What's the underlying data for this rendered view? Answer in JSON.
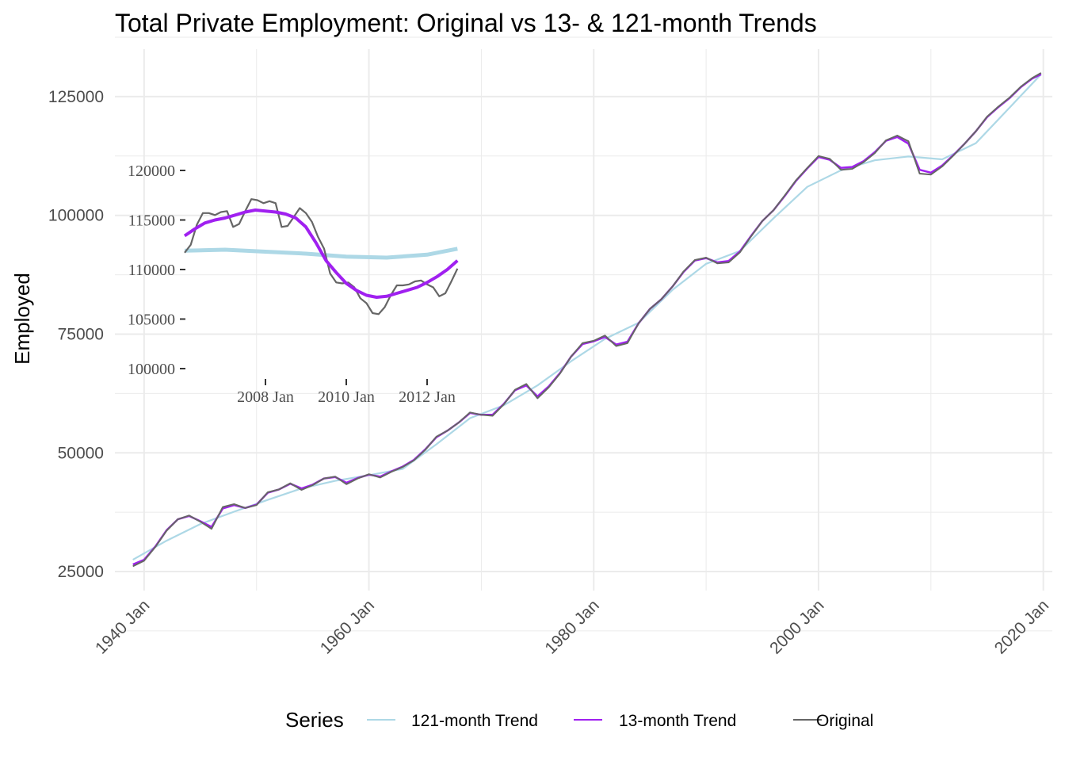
{
  "chart_data": [
    {
      "type": "line",
      "title": "Total Private Employment: Original vs 13- & 121-month Trends",
      "xlabel": "",
      "ylabel": "Employed",
      "x_ticks": [
        "1940 Jan",
        "1960 Jan",
        "1980 Jan",
        "2000 Jan",
        "2020 Jan"
      ],
      "y_ticks": [
        25000,
        50000,
        75000,
        100000,
        125000
      ],
      "xlim": [
        1937.4,
        2020.8
      ],
      "ylim": [
        21000,
        135000
      ],
      "grid": true,
      "legend": {
        "title": "Series",
        "position": "bottom",
        "entries": [
          "121-month Trend",
          "13-month Trend",
          "Original"
        ]
      },
      "colors": {
        "trend121": "#add8e6",
        "trend13": "#a020f0",
        "original": "#666666",
        "grid": "#ebebeb"
      },
      "series": [
        {
          "name": "Original",
          "x": [
            1939.0,
            1940.0,
            1941.0,
            1942.0,
            1943.0,
            1944.0,
            1945.0,
            1946.0,
            1947.0,
            1948.0,
            1949.0,
            1950.0,
            1951.0,
            1952.0,
            1953.0,
            1954.0,
            1955.0,
            1956.0,
            1957.0,
            1958.0,
            1959.0,
            1960.0,
            1961.0,
            1962.0,
            1963.0,
            1964.0,
            1965.0,
            1966.0,
            1967.0,
            1968.0,
            1969.0,
            1970.0,
            1971.0,
            1972.0,
            1973.0,
            1974.0,
            1975.0,
            1976.0,
            1977.0,
            1978.0,
            1979.0,
            1980.0,
            1981.0,
            1982.0,
            1983.0,
            1984.0,
            1985.0,
            1986.0,
            1987.0,
            1988.0,
            1989.0,
            1990.0,
            1991.0,
            1992.0,
            1993.0,
            1994.0,
            1995.0,
            1996.0,
            1997.0,
            1998.0,
            1999.0,
            2000.0,
            2001.0,
            2002.0,
            2003.0,
            2004.0,
            2005.0,
            2006.0,
            2007.0,
            2008.0,
            2009.0,
            2010.0,
            2011.0,
            2012.0,
            2013.0,
            2014.0,
            2015.0,
            2016.0,
            2017.0,
            2018.0,
            2019.0,
            2019.8
          ],
          "values": [
            26100,
            27300,
            30200,
            33600,
            36000,
            36800,
            35500,
            34000,
            38600,
            39200,
            38400,
            39000,
            41700,
            42300,
            43600,
            42200,
            43200,
            44600,
            45000,
            43400,
            44600,
            45500,
            44800,
            46000,
            47000,
            48400,
            50600,
            53400,
            54700,
            56400,
            58500,
            58000,
            57800,
            60200,
            63300,
            64500,
            61500,
            63800,
            66700,
            70300,
            73100,
            73600,
            74700,
            72500,
            73100,
            77300,
            80300,
            82300,
            85000,
            88200,
            90600,
            91100,
            89900,
            90100,
            92200,
            95600,
            98800,
            101100,
            104200,
            107400,
            110000,
            112500,
            111900,
            109600,
            109800,
            111200,
            113100,
            115800,
            116800,
            115600,
            108800,
            108600,
            110300,
            112600,
            115100,
            117700,
            120800,
            122900,
            124800,
            127100,
            128900,
            130000
          ]
        },
        {
          "name": "13-month Trend",
          "x": [
            1939.0,
            1940.0,
            1941.0,
            1942.0,
            1943.0,
            1944.0,
            1945.0,
            1946.0,
            1947.0,
            1948.0,
            1949.0,
            1950.0,
            1951.0,
            1952.0,
            1953.0,
            1954.0,
            1955.0,
            1956.0,
            1957.0,
            1958.0,
            1959.0,
            1960.0,
            1961.0,
            1962.0,
            1963.0,
            1964.0,
            1965.0,
            1966.0,
            1967.0,
            1968.0,
            1969.0,
            1970.0,
            1971.0,
            1972.0,
            1973.0,
            1974.0,
            1975.0,
            1976.0,
            1977.0,
            1978.0,
            1979.0,
            1980.0,
            1981.0,
            1982.0,
            1983.0,
            1984.0,
            1985.0,
            1986.0,
            1987.0,
            1988.0,
            1989.0,
            1990.0,
            1991.0,
            1992.0,
            1993.0,
            1994.0,
            1995.0,
            1996.0,
            1997.0,
            1998.0,
            1999.0,
            2000.0,
            2001.0,
            2002.0,
            2003.0,
            2004.0,
            2005.0,
            2006.0,
            2007.0,
            2008.0,
            2009.0,
            2010.0,
            2011.0,
            2012.0,
            2013.0,
            2014.0,
            2015.0,
            2016.0,
            2017.0,
            2018.0,
            2019.0,
            2019.8
          ],
          "values": [
            26500,
            27500,
            30300,
            33700,
            36000,
            36700,
            35600,
            34400,
            38300,
            39000,
            38400,
            39100,
            41600,
            42300,
            43500,
            42500,
            43300,
            44600,
            44900,
            43700,
            44700,
            45400,
            45000,
            46100,
            47100,
            48500,
            50700,
            53300,
            54700,
            56400,
            58400,
            58000,
            58000,
            60300,
            63200,
            64200,
            61900,
            64000,
            66800,
            70300,
            72900,
            73500,
            74400,
            72800,
            73400,
            77300,
            80300,
            82300,
            85000,
            88100,
            90500,
            91000,
            90100,
            90400,
            92400,
            95700,
            98800,
            101100,
            104100,
            107300,
            109900,
            112300,
            111700,
            110000,
            110200,
            111400,
            113300,
            115700,
            116500,
            115100,
            109600,
            109000,
            110500,
            112700,
            115100,
            117700,
            120700,
            122800,
            124700,
            127000,
            128800,
            129700
          ]
        },
        {
          "name": "121-month Trend",
          "x": [
            1939.0,
            1942.0,
            1945.0,
            1948.0,
            1951.0,
            1954.0,
            1957.0,
            1960.0,
            1963.0,
            1966.0,
            1969.0,
            1972.0,
            1975.0,
            1978.0,
            1981.0,
            1984.0,
            1987.0,
            1990.0,
            1993.0,
            1996.0,
            1999.0,
            2002.0,
            2005.0,
            2008.0,
            2011.0,
            2014.0,
            2017.0,
            2019.8
          ],
          "values": [
            27500,
            31500,
            35000,
            37600,
            40100,
            42500,
            44100,
            45300,
            46600,
            51800,
            57300,
            60000,
            64200,
            69300,
            74000,
            77400,
            84300,
            89800,
            92500,
            99400,
            106000,
            109500,
            111600,
            112400,
            111800,
            115200,
            122700,
            129700
          ]
        }
      ]
    },
    {
      "type": "line",
      "title": "",
      "x_ticks": [
        "2008 Jan",
        "2010 Jan",
        "2012 Jan"
      ],
      "y_ticks": [
        100000,
        105000,
        110000,
        115000,
        120000
      ],
      "xlim": [
        2006.0,
        2013.0
      ],
      "ylim": [
        98800,
        121600
      ],
      "grid": false,
      "series": [
        {
          "name": "Original",
          "x": [
            2006.0,
            2006.15,
            2006.3,
            2006.45,
            2006.6,
            2006.75,
            2006.9,
            2007.05,
            2007.2,
            2007.35,
            2007.5,
            2007.65,
            2007.8,
            2007.95,
            2008.1,
            2008.25,
            2008.4,
            2008.55,
            2008.7,
            2008.85,
            2009.0,
            2009.15,
            2009.3,
            2009.45,
            2009.6,
            2009.75,
            2009.9,
            2010.05,
            2010.2,
            2010.35,
            2010.5,
            2010.65,
            2010.8,
            2010.95,
            2011.1,
            2011.25,
            2011.4,
            2011.55,
            2011.7,
            2011.85,
            2012.0,
            2012.15,
            2012.3,
            2012.45,
            2012.6,
            2012.75
          ],
          "values": [
            111700,
            112500,
            114500,
            115700,
            115700,
            115500,
            115800,
            115900,
            114300,
            114600,
            115900,
            117100,
            117000,
            116700,
            116900,
            116700,
            114300,
            114400,
            115300,
            116200,
            115700,
            114800,
            113300,
            112100,
            109600,
            108700,
            108600,
            108700,
            108200,
            107100,
            106600,
            105600,
            105500,
            106200,
            107400,
            108400,
            108400,
            108500,
            108800,
            108900,
            108500,
            108200,
            107300,
            107600,
            108800,
            110100
          ]
        },
        {
          "name": "13-month Trend",
          "x": [
            2006.0,
            2006.25,
            2006.5,
            2006.75,
            2007.0,
            2007.25,
            2007.5,
            2007.75,
            2008.0,
            2008.25,
            2008.5,
            2008.75,
            2009.0,
            2009.25,
            2009.5,
            2009.75,
            2010.0,
            2010.25,
            2010.5,
            2010.75,
            2011.0,
            2011.25,
            2011.5,
            2011.75,
            2012.0,
            2012.25,
            2012.5,
            2012.75
          ],
          "values": [
            113400,
            114100,
            114700,
            115000,
            115200,
            115500,
            115800,
            116000,
            115900,
            115800,
            115600,
            115200,
            114300,
            112700,
            110900,
            109700,
            108600,
            107900,
            107400,
            107200,
            107300,
            107600,
            107900,
            108200,
            108700,
            109300,
            110000,
            110900
          ]
        },
        {
          "name": "121-month Trend",
          "x": [
            2006.0,
            2007.0,
            2008.0,
            2009.0,
            2010.0,
            2011.0,
            2012.0,
            2012.75
          ],
          "values": [
            111900,
            112000,
            111800,
            111600,
            111300,
            111200,
            111500,
            112100
          ]
        }
      ]
    }
  ]
}
